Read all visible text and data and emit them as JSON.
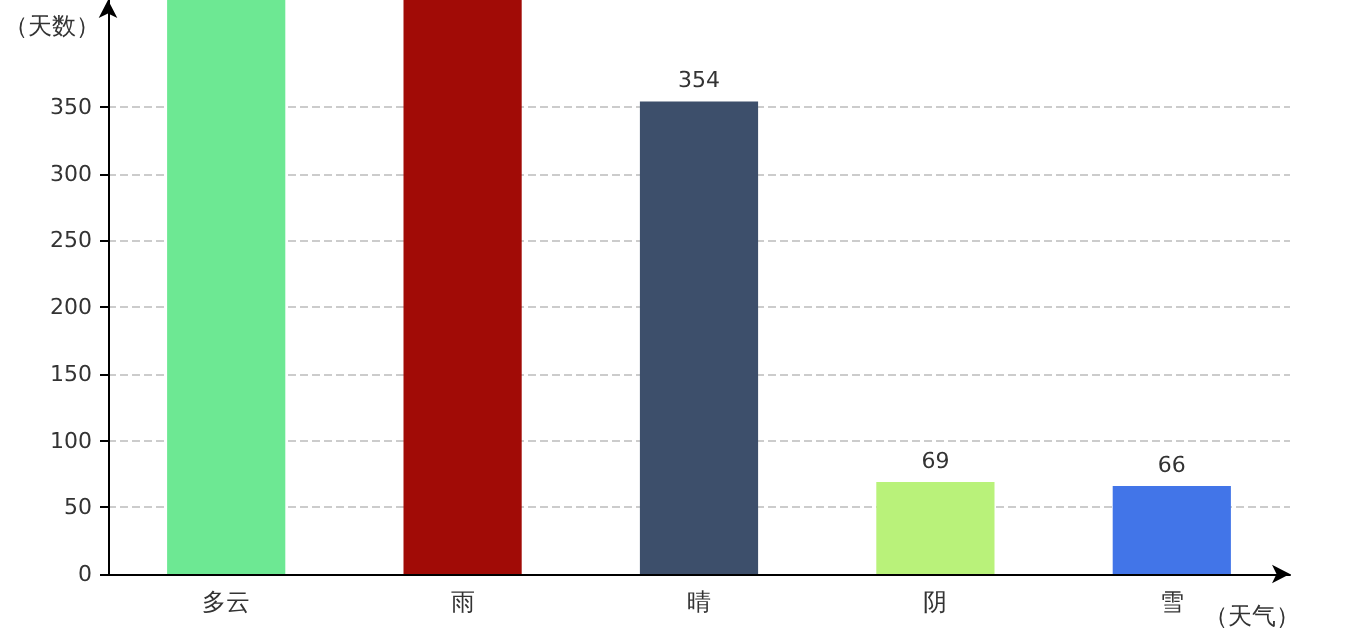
{
  "chart_data": {
    "type": "bar",
    "xlabel": "（天气）",
    "ylabel": "（天数）",
    "categories": [
      "多云",
      "雨",
      "晴",
      "阴",
      "雪"
    ],
    "values": [
      430,
      430,
      354,
      69,
      66
    ],
    "colors": [
      "#6de893",
      "#a10b06",
      "#3d4f6b",
      "#b9f27a",
      "#4275e8"
    ],
    "value_labels": [
      null,
      null,
      "354",
      "69",
      "66"
    ],
    "ylim": [
      0,
      430
    ],
    "yticks": [
      0,
      50,
      100,
      150,
      200,
      250,
      300,
      350
    ],
    "grid": "y"
  }
}
